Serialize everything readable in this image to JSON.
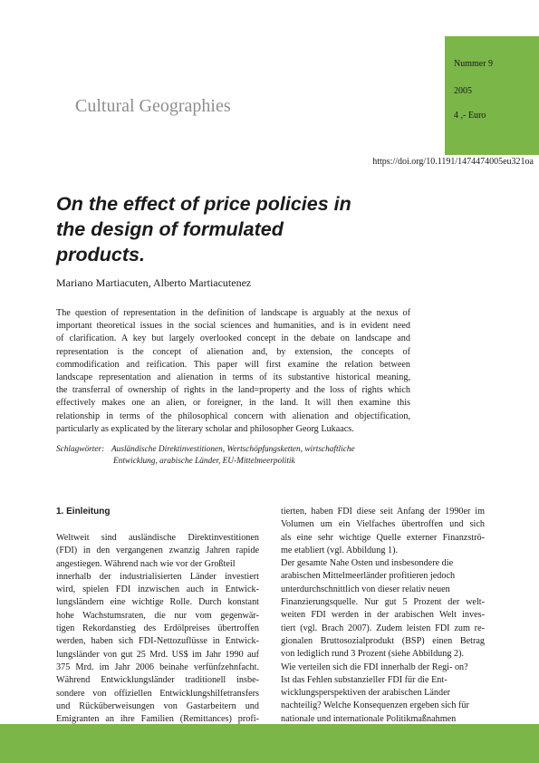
{
  "header": {
    "issue": "Nummer 9",
    "year": "2005",
    "price": "4 ,- Euro",
    "journal": "Cultural Geographies",
    "doi": "https://doi.org/10.1191/1474474005eu321oa",
    "accent_color": "#7ab648"
  },
  "article": {
    "title_lines": [
      "On the effect of price policies in",
      "the design of formulated",
      "products."
    ],
    "authors": "Mariano Martiacuten, Alberto Martiacutenez",
    "abstract_lines": [
      "The question of representation in the definition of landscape is arguably at the nexus of",
      "important theoretical issues in the social sciences and humanities, and is in evident need",
      "of clarification. A key but largely overlooked concept in the debate on landscape and",
      "representation is the concept of alienation and, by extension, the concepts of",
      "commodification and reification. This paper will first examine the relation between",
      "landscape representation and alienation in terms of its substantive historical meaning,",
      "the transferral of ownership of rights in the land=property and the loss of rights which",
      "effectively makes one an alien, or foreigner, in the land. It will then examine this",
      "relationship in terms of the philosophical concern with alienation and objectification,",
      "particularly as explicated by the literary scholar and philosopher Georg Lukaacs."
    ],
    "keywords_label": "Schlagwörter:",
    "keywords_lines": [
      "Ausländische Direktinvestitionen, Wertschöpfungsketten, wirtschaftliche",
      "Entwicklung, arabische Länder, EU-Mittelmeerpolitik"
    ]
  },
  "body": {
    "section_heading": "1.  Einleitung",
    "left_lines": [
      "Weltweit sind ausländische Direktinvestitionen",
      "(FDI) in den vergangenen zwanzig Jahren rapide",
      "angestiegen. Während nach wie vor der Großteil",
      "innerhalb der industrialisierten Länder investiert",
      "wird, spielen FDI inzwischen auch in Entwick-",
      "lungsländern eine wichtige Rolle. Durch konstant",
      "hohe Wachstumsraten, die nur vom gegenwär-",
      "tigen Rekordanstieg des Erdölpreises übertroffen",
      "werden, haben sich FDI-Nettozuflüsse in Entwick-",
      "lungsländer von gut 25 Mrd. US$ im Jahr 1990 auf",
      "375 Mrd. im Jahr 2006 beinahe verfünfzehnfacht.",
      "Während Entwicklungsländer traditionell insbe-",
      "sondere von offiziellen Entwicklungshilfetransfers",
      "und Rücküberweisungen von Gastarbeitern und",
      "Emigranten an ihre Familien (Remittances) profi-"
    ],
    "right_lines": [
      "tierten, haben FDI diese seit Anfang der 1990er im",
      "Volumen um ein Vielfaches übertroffen und sich",
      "als eine sehr wichtige Quelle externer Finanzströ-",
      "me etabliert (vgl. Abbildung 1).",
      "Der gesamte Nahe Osten und insbesondere die",
      "arabischen Mittelmeerländer profitieren jedoch",
      "unterdurchschnittlich von dieser relativ neuen",
      "Finanzierungsquelle. Nur gut 5 Prozent der welt-",
      "weiten FDI werden in der arabischen Welt inves-",
      "tiert (vgl. Brach 2007). Zudem leisten FDI zum re-",
      "gionalen Bruttosozialprodukt (BSP) einen Betrag",
      "von lediglich rund 3 Prozent (siehe Abbildung 2).",
      "Wie verteilen sich die FDI innerhalb der Regi- on?",
      "Ist das Fehlen substanzieller FDI für die Ent-",
      "wicklungsperspektiven der arabischen Länder",
      "nachteilig? Welche Konsequenzen ergeben sich für",
      "nationale und internationale Politikmaßnahmen"
    ]
  }
}
